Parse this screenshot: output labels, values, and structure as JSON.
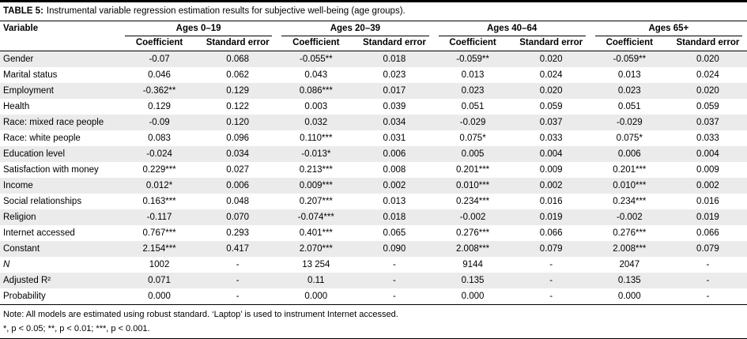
{
  "table": {
    "title_label": "TABLE 5:",
    "title_text": "Instrumental variable regression estimation results for subjective well-being (age groups).",
    "variable_header": "Variable",
    "groups": [
      "Ages 0–19",
      "Ages 20–39",
      "Ages 40–64",
      "Ages 65+"
    ],
    "subheaders": [
      "Coefficient",
      "Standard error"
    ],
    "rows": [
      {
        "variable": "Gender",
        "values": [
          "-0.07",
          "0.068",
          "-0.055**",
          "0.018",
          "-0.059**",
          "0.020",
          "-0.059**",
          "0.020"
        ]
      },
      {
        "variable": "Marital status",
        "values": [
          "0.046",
          "0.062",
          "0.043",
          "0.023",
          "0.013",
          "0.024",
          "0.013",
          "0.024"
        ]
      },
      {
        "variable": "Employment",
        "values": [
          "-0.362**",
          "0.129",
          "0.086***",
          "0.017",
          "0.023",
          "0.020",
          "0.023",
          "0.020"
        ]
      },
      {
        "variable": "Health",
        "values": [
          "0.129",
          "0.122",
          "0.003",
          "0.039",
          "0.051",
          "0.059",
          "0.051",
          "0.059"
        ]
      },
      {
        "variable": "Race: mixed race people",
        "values": [
          "-0.09",
          "0.120",
          "0.032",
          "0.034",
          "-0.029",
          "0.037",
          "-0.029",
          "0.037"
        ]
      },
      {
        "variable": "Race: white people",
        "values": [
          "0.083",
          "0.096",
          "0.110***",
          "0.031",
          "0.075*",
          "0.033",
          "0.075*",
          "0.033"
        ]
      },
      {
        "variable": "Education level",
        "values": [
          "-0.024",
          "0.034",
          "-0.013*",
          "0.006",
          "0.005",
          "0.004",
          "0.006",
          "0.004"
        ]
      },
      {
        "variable": "Satisfaction with money",
        "values": [
          "0.229***",
          "0.027",
          "0.213***",
          "0.008",
          "0.201***",
          "0.009",
          "0.201***",
          "0.009"
        ]
      },
      {
        "variable": "Income",
        "values": [
          "0.012*",
          "0.006",
          "0.009***",
          "0.002",
          "0.010***",
          "0.002",
          "0.010***",
          "0.002"
        ]
      },
      {
        "variable": "Social relationships",
        "values": [
          "0.163***",
          "0.048",
          "0.207***",
          "0.013",
          "0.234***",
          "0.016",
          "0.234***",
          "0.016"
        ]
      },
      {
        "variable": "Religion",
        "values": [
          "-0.117",
          "0.070",
          "-0.074***",
          "0.018",
          "-0.002",
          "0.019",
          "-0.002",
          "0.019"
        ]
      },
      {
        "variable": "Internet accessed",
        "values": [
          "0.767***",
          "0.293",
          "0.401***",
          "0.065",
          "0.276***",
          "0.066",
          "0.276***",
          "0.066"
        ]
      },
      {
        "variable": "Constant",
        "values": [
          "2.154***",
          "0.417",
          "2.070***",
          "0.090",
          "2.008***",
          "0.079",
          "2.008***",
          "0.079"
        ]
      },
      {
        "variable": "N",
        "italic": true,
        "values": [
          "1002",
          "-",
          "13 254",
          "-",
          "9144",
          "-",
          "2047",
          "-"
        ]
      },
      {
        "variable": "Adjusted R²",
        "values": [
          "0.071",
          "-",
          "0.11",
          "-",
          "0.135",
          "-",
          "0.135",
          "-"
        ]
      },
      {
        "variable": "Probability",
        "values": [
          "0.000",
          "-",
          "0.000",
          "-",
          "0.000",
          "-",
          "0.000",
          "-"
        ]
      }
    ],
    "note": "Note: All models are estimated using robust standard. ‘Laptop’ is used to instrument Internet accessed.",
    "significance": "*, p < 0.05; **, p < 0.01; ***, p < 0.001.",
    "colors": {
      "stripe": "#ebebeb",
      "rule": "#000000",
      "text": "#000000",
      "background": "#ffffff"
    }
  }
}
